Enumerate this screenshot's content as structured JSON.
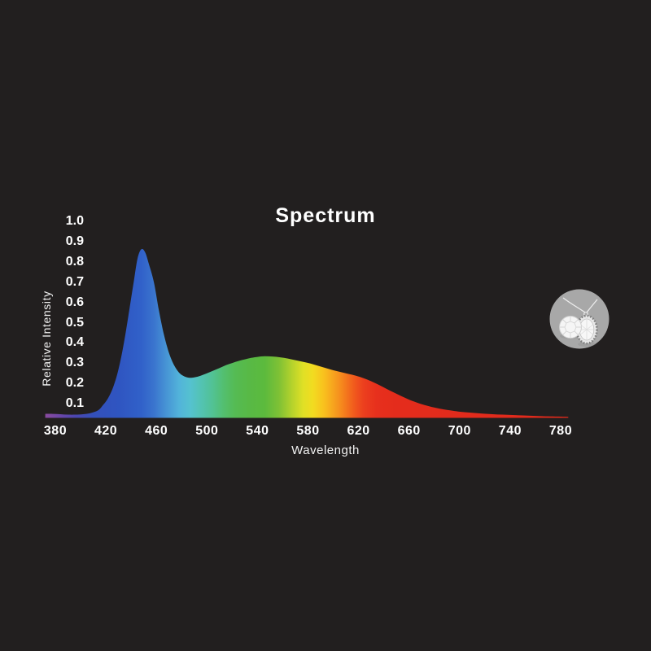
{
  "colors": {
    "background": "#221f1f",
    "text": "#ffffff",
    "badge_background": "#a8a8a8"
  },
  "badge": {
    "icon": "jewelry-pendant-photo"
  },
  "chart_data": {
    "type": "area",
    "title": "Spectrum",
    "xlabel": "Wavelength",
    "ylabel": "Relative Intensity",
    "x_ticks": [
      "380",
      "420",
      "460",
      "500",
      "540",
      "580",
      "620",
      "660",
      "700",
      "740",
      "780"
    ],
    "x_tick_values": [
      380,
      420,
      460,
      500,
      540,
      580,
      620,
      660,
      700,
      740,
      780
    ],
    "y_ticks": [
      "1.0",
      "0.9",
      "0.8",
      "0.7",
      "0.6",
      "0.5",
      "0.4",
      "0.3",
      "0.2",
      "0.1"
    ],
    "y_tick_values": [
      1.0,
      0.9,
      0.8,
      0.7,
      0.6,
      0.5,
      0.4,
      0.3,
      0.2,
      0.1
    ],
    "xlim": [
      372,
      786
    ],
    "ylim": [
      0,
      1.0
    ],
    "grid": false,
    "legend": false,
    "series": [
      {
        "name": "Relative Intensity",
        "x": [
          372,
          378,
          384,
          390,
          396,
          402,
          408,
          414,
          418,
          422,
          426,
          430,
          434,
          438,
          442,
          445,
          448,
          451,
          454,
          458,
          462,
          466,
          470,
          474,
          478,
          482,
          486,
          490,
          495,
          500,
          505,
          510,
          515,
          520,
          525,
          530,
          535,
          540,
          546,
          552,
          558,
          564,
          570,
          576,
          582,
          588,
          594,
          600,
          606,
          612,
          618,
          624,
          630,
          636,
          642,
          648,
          654,
          660,
          666,
          672,
          678,
          684,
          690,
          696,
          702,
          710,
          718,
          726,
          734,
          742,
          750,
          758,
          766,
          774,
          780,
          786
        ],
        "y": [
          0.05,
          0.05,
          0.048,
          0.046,
          0.046,
          0.048,
          0.054,
          0.068,
          0.095,
          0.13,
          0.185,
          0.27,
          0.39,
          0.54,
          0.7,
          0.815,
          0.862,
          0.848,
          0.79,
          0.7,
          0.56,
          0.44,
          0.35,
          0.29,
          0.253,
          0.235,
          0.228,
          0.23,
          0.238,
          0.25,
          0.263,
          0.276,
          0.29,
          0.301,
          0.311,
          0.319,
          0.326,
          0.331,
          0.334,
          0.333,
          0.329,
          0.323,
          0.315,
          0.307,
          0.298,
          0.287,
          0.276,
          0.265,
          0.256,
          0.247,
          0.238,
          0.226,
          0.211,
          0.193,
          0.174,
          0.155,
          0.137,
          0.12,
          0.106,
          0.094,
          0.084,
          0.076,
          0.069,
          0.064,
          0.059,
          0.055,
          0.051,
          0.048,
          0.046,
          0.044,
          0.042,
          0.04,
          0.038,
          0.037,
          0.036,
          0.035
        ]
      }
    ],
    "spectrum_gradient": [
      {
        "nm": 372,
        "color": "#8a4b9e"
      },
      {
        "nm": 384,
        "color": "#6a46a8"
      },
      {
        "nm": 396,
        "color": "#4b46b0"
      },
      {
        "nm": 410,
        "color": "#3350bb"
      },
      {
        "nm": 430,
        "color": "#2f55c1"
      },
      {
        "nm": 448,
        "color": "#3161c9"
      },
      {
        "nm": 458,
        "color": "#3a74ce"
      },
      {
        "nm": 468,
        "color": "#4795d5"
      },
      {
        "nm": 478,
        "color": "#52b3da"
      },
      {
        "nm": 487,
        "color": "#55c2cf"
      },
      {
        "nm": 495,
        "color": "#53c3b4"
      },
      {
        "nm": 504,
        "color": "#52c296"
      },
      {
        "nm": 513,
        "color": "#53bf70"
      },
      {
        "nm": 522,
        "color": "#55bb54"
      },
      {
        "nm": 534,
        "color": "#58b945"
      },
      {
        "nm": 546,
        "color": "#5cba3d"
      },
      {
        "nm": 557,
        "color": "#7fc135"
      },
      {
        "nm": 567,
        "color": "#b3d22c"
      },
      {
        "nm": 576,
        "color": "#dfe026"
      },
      {
        "nm": 584,
        "color": "#f2dc20"
      },
      {
        "nm": 592,
        "color": "#f8c31e"
      },
      {
        "nm": 600,
        "color": "#f7a41e"
      },
      {
        "nm": 608,
        "color": "#f5821d"
      },
      {
        "nm": 616,
        "color": "#f15c1d"
      },
      {
        "nm": 624,
        "color": "#ec3f1e"
      },
      {
        "nm": 634,
        "color": "#e7301d"
      },
      {
        "nm": 650,
        "color": "#e42c1c"
      },
      {
        "nm": 700,
        "color": "#e22b1c"
      },
      {
        "nm": 786,
        "color": "#e02a1b"
      }
    ]
  }
}
